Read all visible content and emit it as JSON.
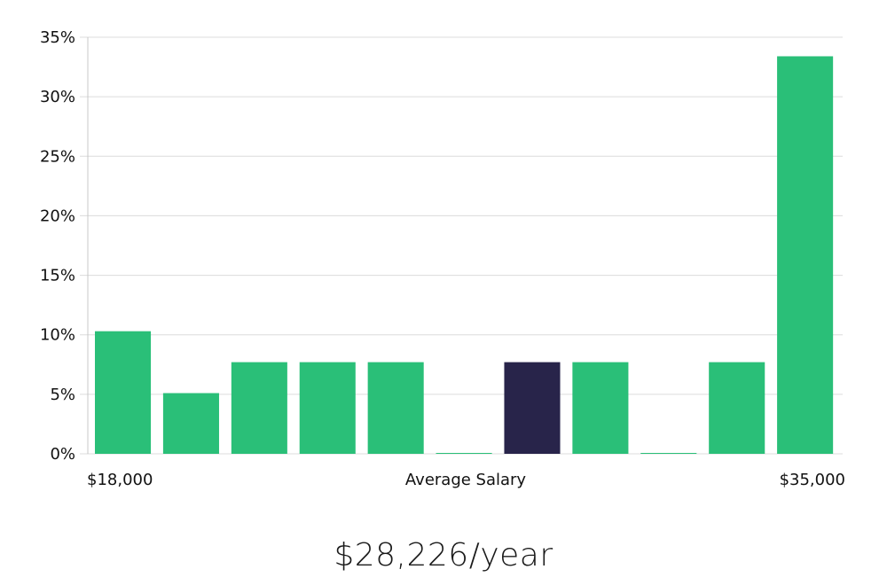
{
  "chart_data": {
    "type": "bar",
    "title": "",
    "xlabel": "Average Salary",
    "ylabel": "",
    "x_start_label": "$18,000",
    "x_end_label": "$35,000",
    "yticks": [
      "0%",
      "5%",
      "10%",
      "15%",
      "20%",
      "25%",
      "30%",
      "35%"
    ],
    "ylim": [
      0,
      35
    ],
    "grid": true,
    "values": [
      10.3,
      5.1,
      7.7,
      7.7,
      7.7,
      0,
      7.7,
      7.7,
      0,
      7.7,
      33.4
    ],
    "highlight_index": 6,
    "colors": {
      "bar": "#2abf78",
      "highlight": "#28244a",
      "grid": "#dcdcdc",
      "axis": "#c8c8c8",
      "text": "#111111"
    }
  },
  "summary": {
    "salary": "$28,226/year"
  }
}
